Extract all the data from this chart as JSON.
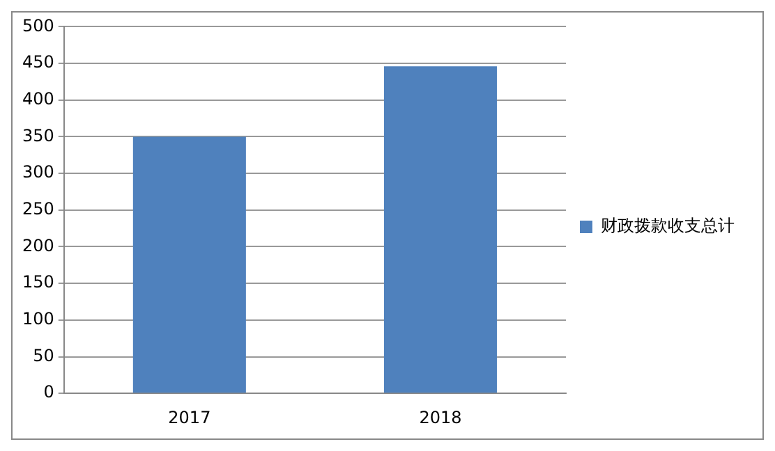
{
  "chart_data": {
    "type": "bar",
    "categories": [
      "2017",
      "2018"
    ],
    "series": [
      {
        "name": "财政拨款收支总计",
        "color": "#4f81bd",
        "values": [
          350,
          446
        ]
      }
    ],
    "ylim": [
      0,
      500
    ],
    "yticks": [
      0,
      50,
      100,
      150,
      200,
      250,
      300,
      350,
      400,
      450,
      500
    ],
    "grid": "y",
    "legend": "right"
  }
}
